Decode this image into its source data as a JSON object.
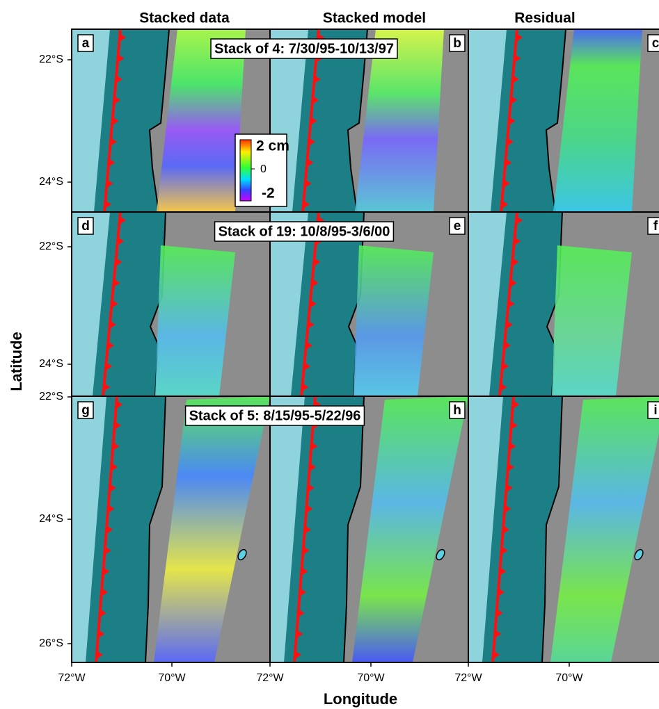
{
  "column_titles": [
    "Stacked data",
    "Stacked model",
    "Residual"
  ],
  "rows": [
    {
      "stack_label": "Stack of 4: 7/30/95-10/13/97",
      "panel_letters": [
        "a",
        "b",
        "c"
      ],
      "lat_ticks": [
        "22°S",
        "24°S"
      ]
    },
    {
      "stack_label": "Stack of 19: 10/8/95-3/6/00",
      "panel_letters": [
        "d",
        "e",
        "f"
      ],
      "lat_ticks": [
        "22°S",
        "24°S"
      ]
    },
    {
      "stack_label": "Stack of 5: 8/15/95-5/22/96",
      "panel_letters": [
        "g",
        "h",
        "i"
      ],
      "lat_ticks": [
        "22°S",
        "24°S",
        "26°S"
      ]
    }
  ],
  "lon_ticks": [
    "72°W",
    "70°W",
    "72°W",
    "70°W",
    "72°W",
    "70°W"
  ],
  "axis_labels": {
    "x": "Longitude",
    "y": "Latitude"
  },
  "colorbar": {
    "max_label": "2 cm",
    "mid_label": "0",
    "min_label": "-2"
  }
}
